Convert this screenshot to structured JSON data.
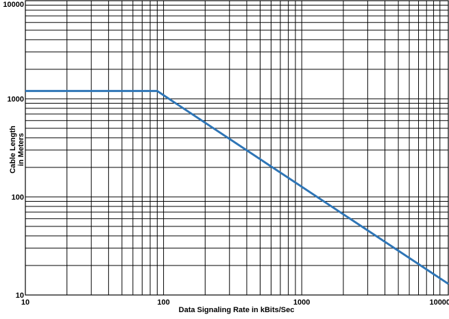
{
  "chart_data": {
    "type": "line",
    "title": "",
    "xlabel": "Data Signaling Rate in kBits/Sec",
    "ylabel_lines": [
      "Cable Length",
      "in Meters"
    ],
    "x_scale": "log",
    "y_scale": "log",
    "xlim": [
      10,
      11500
    ],
    "ylim": [
      10,
      10000
    ],
    "grid": true,
    "x_tick_labels": [
      {
        "value": 10,
        "label": "10"
      },
      {
        "value": 100,
        "label": "100"
      },
      {
        "value": 1000,
        "label": "1000"
      },
      {
        "value": 10000,
        "label": "10000"
      }
    ],
    "y_tick_labels": [
      {
        "value": 10,
        "label": "10"
      },
      {
        "value": 100,
        "label": "100"
      },
      {
        "value": 1000,
        "label": "1000"
      },
      {
        "value": 10000,
        "label": "10000"
      }
    ],
    "series": [
      {
        "name": "Cable Length",
        "x": [
          10,
          90,
          11500
        ],
        "y": [
          1200,
          1200,
          13
        ]
      }
    ],
    "colors": {
      "line": "#2e75b6",
      "grid": "#000000",
      "background": "#ffffff"
    }
  }
}
